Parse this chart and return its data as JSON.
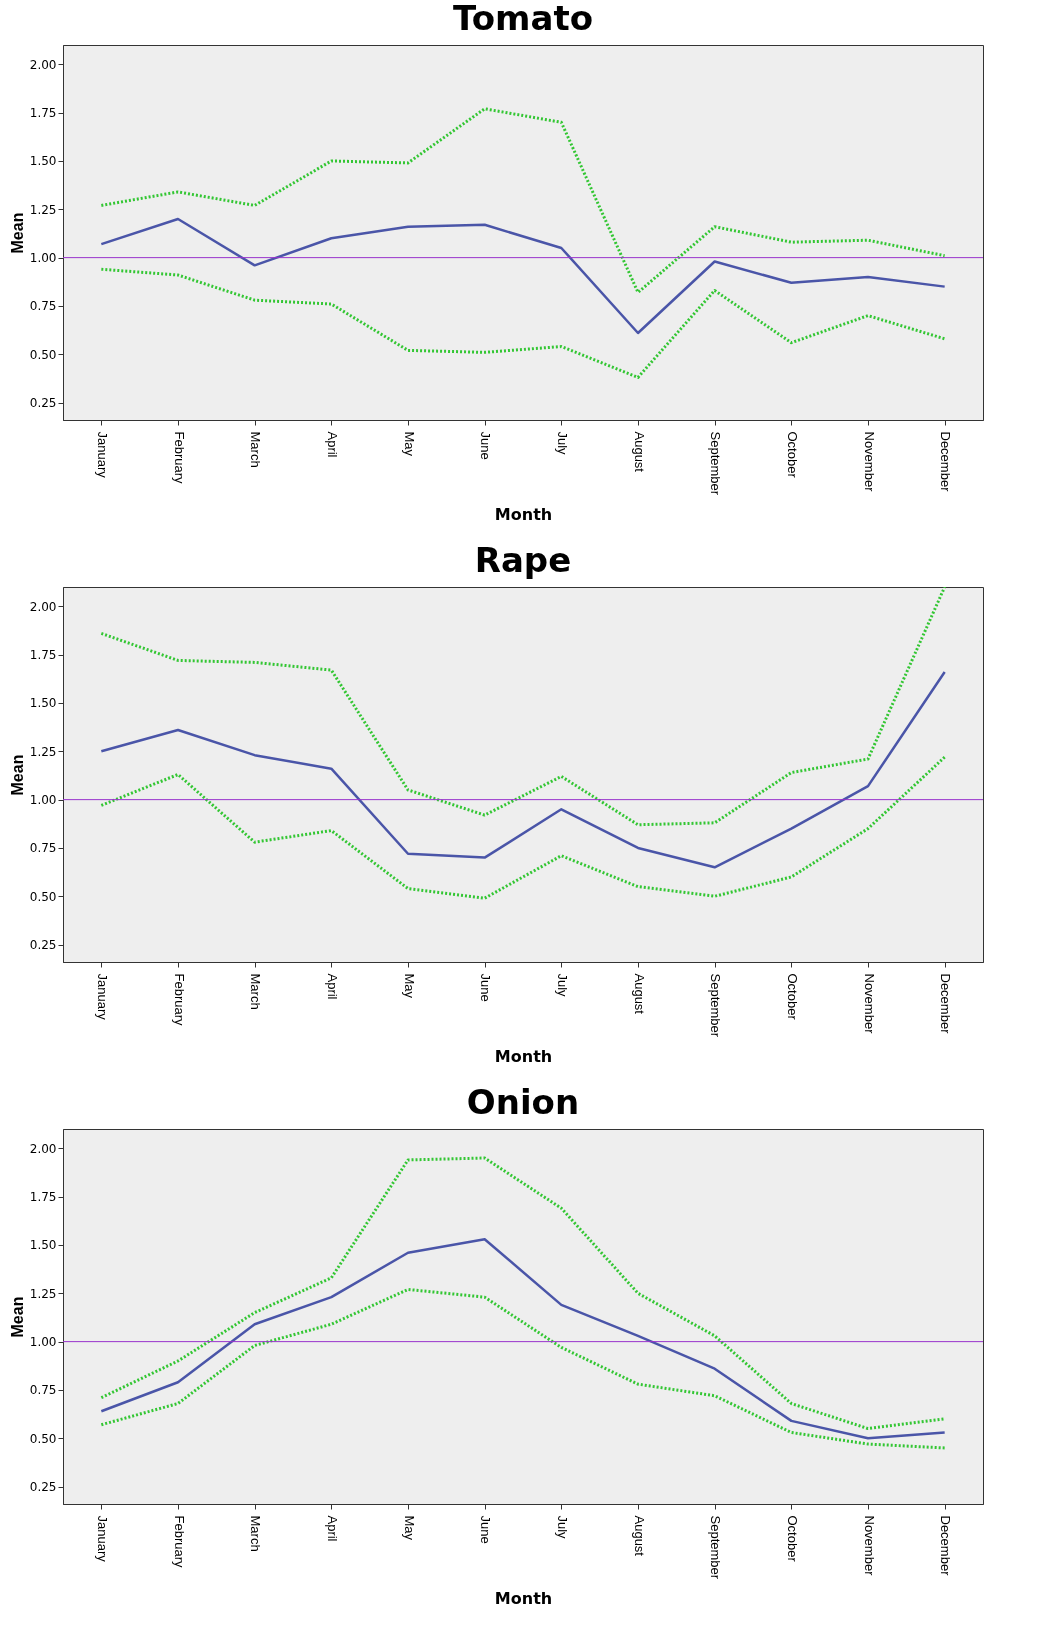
{
  "chart_data": [
    {
      "type": "line",
      "title": "Tomato",
      "xlabel": "Month",
      "ylabel": "Mean",
      "categories": [
        "January",
        "February",
        "March",
        "April",
        "May",
        "June",
        "July",
        "August",
        "September",
        "October",
        "November",
        "December"
      ],
      "series": [
        {
          "color": "#4a55a8",
          "line_style": "solid",
          "values": [
            1.07,
            1.2,
            0.96,
            1.1,
            1.16,
            1.17,
            1.05,
            0.61,
            0.98,
            0.87,
            0.9,
            0.85
          ]
        },
        {
          "color": "#33c633",
          "line_style": "dotted",
          "values": [
            1.27,
            1.34,
            1.27,
            1.5,
            1.49,
            1.77,
            1.7,
            0.82,
            1.16,
            1.08,
            1.09,
            1.01
          ]
        },
        {
          "color": "#33c633",
          "line_style": "dotted",
          "values": [
            0.94,
            0.91,
            0.78,
            0.76,
            0.52,
            0.51,
            0.54,
            0.38,
            0.83,
            0.56,
            0.7,
            0.58
          ]
        }
      ],
      "ylim": [
        0.16,
        2.1
      ],
      "yticks": [
        0.25,
        {
          "value": 0.5,
          "label": "0.50"
        },
        0.75,
        {
          "value": 1,
          "label": "1.00"
        },
        1.25,
        {
          "value": 1.5,
          "label": "1.50"
        },
        1.75,
        {
          "value": 2,
          "label": "2.00"
        }
      ],
      "ref_lines": [
        {
          "axis": "y",
          "value": 1,
          "color": "#9933cc"
        }
      ],
      "grid": false,
      "marker": "none"
    },
    {
      "type": "line",
      "title": "Rape",
      "xlabel": "Month",
      "ylabel": "Mean",
      "categories": [
        "January",
        "February",
        "March",
        "April",
        "May",
        "June",
        "July",
        "August",
        "September",
        "October",
        "November",
        "December"
      ],
      "series": [
        {
          "color": "#4a55a8",
          "line_style": "solid",
          "values": [
            1.25,
            1.36,
            1.23,
            1.16,
            0.72,
            0.7,
            0.95,
            0.75,
            0.65,
            0.85,
            1.07,
            1.66
          ]
        },
        {
          "color": "#33c633",
          "line_style": "dotted",
          "values": [
            1.86,
            1.72,
            1.71,
            1.67,
            1.05,
            0.92,
            1.12,
            0.87,
            0.88,
            1.14,
            1.21,
            2.1
          ]
        },
        {
          "color": "#33c633",
          "line_style": "dotted",
          "values": [
            0.97,
            1.13,
            0.78,
            0.84,
            0.54,
            0.49,
            0.71,
            0.55,
            0.5,
            0.6,
            0.85,
            1.22
          ]
        }
      ],
      "ylim": [
        0.16,
        2.1
      ],
      "yticks": [
        0.25,
        {
          "value": 0.5,
          "label": "0.50"
        },
        0.75,
        {
          "value": 1,
          "label": "1.00"
        },
        1.25,
        {
          "value": 1.5,
          "label": "1.50"
        },
        1.75,
        {
          "value": 2,
          "label": "2.00"
        }
      ],
      "ref_lines": [
        {
          "axis": "y",
          "value": 1,
          "color": "#9933cc"
        }
      ],
      "grid": false,
      "marker": "none"
    },
    {
      "type": "line",
      "title": "Onion",
      "xlabel": "Month",
      "ylabel": "Mean",
      "categories": [
        "January",
        "February",
        "March",
        "April",
        "May",
        "June",
        "July",
        "August",
        "September",
        "October",
        "November",
        "December"
      ],
      "series": [
        {
          "color": "#4a55a8",
          "line_style": "solid",
          "values": [
            0.64,
            0.79,
            1.09,
            1.23,
            1.46,
            1.53,
            1.19,
            1.03,
            0.86,
            0.59,
            0.5,
            0.53
          ]
        },
        {
          "color": "#33c633",
          "line_style": "dotted",
          "values": [
            0.71,
            0.9,
            1.15,
            1.33,
            1.94,
            1.95,
            1.69,
            1.25,
            1.03,
            0.68,
            0.55,
            0.6
          ]
        },
        {
          "color": "#33c633",
          "line_style": "dotted",
          "values": [
            0.57,
            0.68,
            0.98,
            1.09,
            1.27,
            1.23,
            0.97,
            0.78,
            0.72,
            0.53,
            0.47,
            0.45
          ]
        }
      ],
      "ylim": [
        0.16,
        2.1
      ],
      "yticks": [
        0.25,
        {
          "value": 0.5,
          "label": "0.50"
        },
        0.75,
        {
          "value": 1,
          "label": "1.00"
        },
        1.25,
        {
          "value": 1.5,
          "label": "1.50"
        },
        1.75,
        {
          "value": 2,
          "label": "2.00"
        }
      ],
      "ref_lines": [
        {
          "axis": "y",
          "value": 1,
          "color": "#9933cc"
        }
      ],
      "grid": false,
      "marker": "none"
    }
  ]
}
